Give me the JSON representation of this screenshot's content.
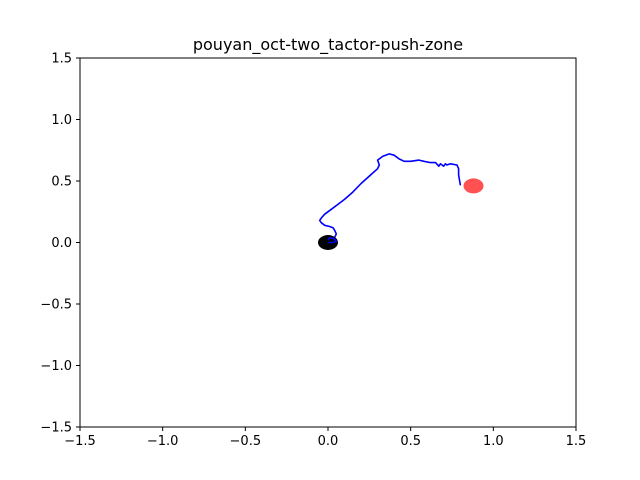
{
  "chart_data": {
    "type": "scatter",
    "title": "pouyan_oct-two_tactor-push-zone",
    "xlabel": "",
    "ylabel": "",
    "xlim": [
      -1.5,
      1.5
    ],
    "ylim": [
      -1.5,
      1.5
    ],
    "grid": false,
    "x_ticks": [
      -1.5,
      -1.0,
      -0.5,
      0.0,
      0.5,
      1.0,
      1.5
    ],
    "y_ticks": [
      -1.5,
      -1.0,
      -0.5,
      0.0,
      0.5,
      1.0,
      1.5
    ],
    "x_tick_labels": [
      "−1.5",
      "−1.0",
      "−0.5",
      "0.0",
      "0.5",
      "1.0",
      "1.5"
    ],
    "y_tick_labels": [
      "−1.5",
      "−1.0",
      "−0.5",
      "0.0",
      "0.5",
      "1.0",
      "1.5"
    ],
    "colors": {
      "trajectory": "#0000ff",
      "start_marker": "#000000",
      "target_marker": "#ff3333"
    },
    "markers": [
      {
        "role": "start",
        "x": 0.0,
        "y": 0.0,
        "color": "#000000",
        "opacity": 1.0
      },
      {
        "role": "target",
        "x": 0.88,
        "y": 0.46,
        "color": "#ff3333",
        "opacity": 0.85
      }
    ],
    "series": [
      {
        "x": [
          0.0,
          0.03,
          0.05,
          0.04,
          0.01,
          0.0,
          0.03,
          0.04,
          0.05,
          0.04,
          0.03,
          0.01,
          -0.02,
          -0.04,
          -0.05,
          -0.04,
          -0.02,
          0.02,
          0.06,
          0.1,
          0.15,
          0.2,
          0.25,
          0.3,
          0.31,
          0.3,
          0.33,
          0.37,
          0.4,
          0.43,
          0.46,
          0.5,
          0.55,
          0.58,
          0.62,
          0.65,
          0.67,
          0.68,
          0.69,
          0.7,
          0.71,
          0.72,
          0.74,
          0.78,
          0.79,
          0.79,
          0.8
        ],
        "y": [
          0.0,
          0.0,
          0.01,
          0.03,
          0.04,
          0.02,
          0.02,
          0.04,
          0.07,
          0.1,
          0.12,
          0.13,
          0.14,
          0.16,
          0.18,
          0.2,
          0.23,
          0.27,
          0.31,
          0.35,
          0.41,
          0.48,
          0.54,
          0.6,
          0.63,
          0.67,
          0.7,
          0.72,
          0.71,
          0.68,
          0.66,
          0.66,
          0.67,
          0.66,
          0.65,
          0.65,
          0.62,
          0.64,
          0.63,
          0.62,
          0.64,
          0.63,
          0.64,
          0.63,
          0.6,
          0.55,
          0.47
        ],
        "color": "#0000ff"
      }
    ]
  }
}
